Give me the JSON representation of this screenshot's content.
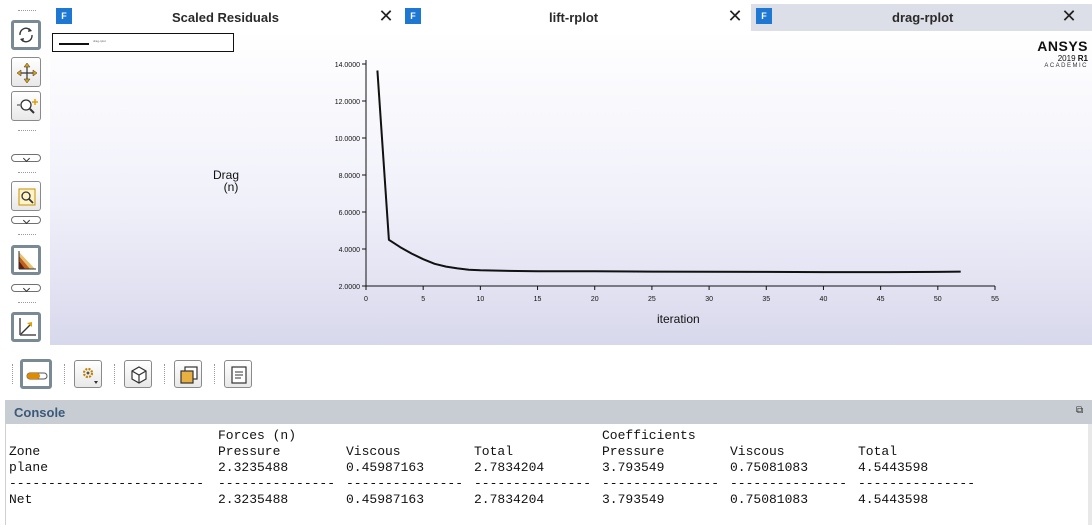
{
  "tabs": [
    {
      "icon": "F",
      "label": "Scaled Residuals",
      "close": "✕"
    },
    {
      "icon": "F",
      "label": "lift-rplot",
      "close": "✕"
    },
    {
      "icon": "F",
      "label": "drag-rplot",
      "close": "✕"
    }
  ],
  "plot": {
    "legend_text": "drag-rplot",
    "ylabel_line1": "Drag",
    "ylabel_line2": "(n)",
    "xlabel": "iteration"
  },
  "logo": {
    "brand": "ANSYS",
    "version_prefix": "2019 ",
    "version_suffix": "R1",
    "edition": "ACADEMIC"
  },
  "left_toolbar": {
    "icons": [
      "rotate-icon",
      "pan-icon",
      "zoom-in-icon",
      "zoom-to-fit-icon",
      "colormap-icon",
      "axes-icon"
    ]
  },
  "bottom_toolbar": {
    "icons": [
      "legend-toggle-icon",
      "settings-icon",
      "view-cube-icon",
      "copy-window-icon",
      "notes-icon"
    ]
  },
  "console": {
    "title": "Console",
    "header1": {
      "forces": "Forces (n)",
      "coefficients": "Coefficients"
    },
    "header2": [
      "Zone",
      "Pressure",
      "Viscous",
      "Total",
      "Pressure",
      "Viscous",
      "Total"
    ],
    "rows": [
      {
        "zone": "plane",
        "values": [
          "2.3235488",
          "0.45987163",
          "2.7834204",
          "3.793549",
          "0.75081083",
          "4.5443598"
        ]
      }
    ],
    "separator": [
      "-------------------------",
      "---------------",
      "---------------",
      "---------------",
      "---------------",
      "---------------",
      "---------------"
    ],
    "net": {
      "zone": "Net",
      "values": [
        "2.3235488",
        "0.45987163",
        "2.7834204",
        "3.793549",
        "0.75081083",
        "4.5443598"
      ]
    }
  },
  "chart_data": {
    "type": "line",
    "xlabel": "iteration",
    "ylabel": "Drag (n)",
    "xlim": [
      0,
      55
    ],
    "ylim": [
      2,
      14
    ],
    "xticks": [
      0,
      5,
      10,
      15,
      20,
      25,
      30,
      35,
      40,
      45,
      50,
      55
    ],
    "yticks": [
      "2.0000",
      "4.0000",
      "6.0000",
      "8.0000",
      "10.0000",
      "12.0000",
      "14.0000"
    ],
    "grid": false,
    "legend": "top-left",
    "series": [
      {
        "name": "drag-rplot",
        "x": [
          1,
          2,
          3,
          4,
          5,
          6,
          7,
          8,
          9,
          10,
          12,
          15,
          20,
          25,
          30,
          35,
          40,
          45,
          50,
          52
        ],
        "y": [
          13.65,
          4.5,
          4.1,
          3.75,
          3.45,
          3.2,
          3.05,
          2.95,
          2.88,
          2.85,
          2.82,
          2.8,
          2.8,
          2.78,
          2.77,
          2.76,
          2.75,
          2.75,
          2.76,
          2.78
        ]
      }
    ]
  }
}
